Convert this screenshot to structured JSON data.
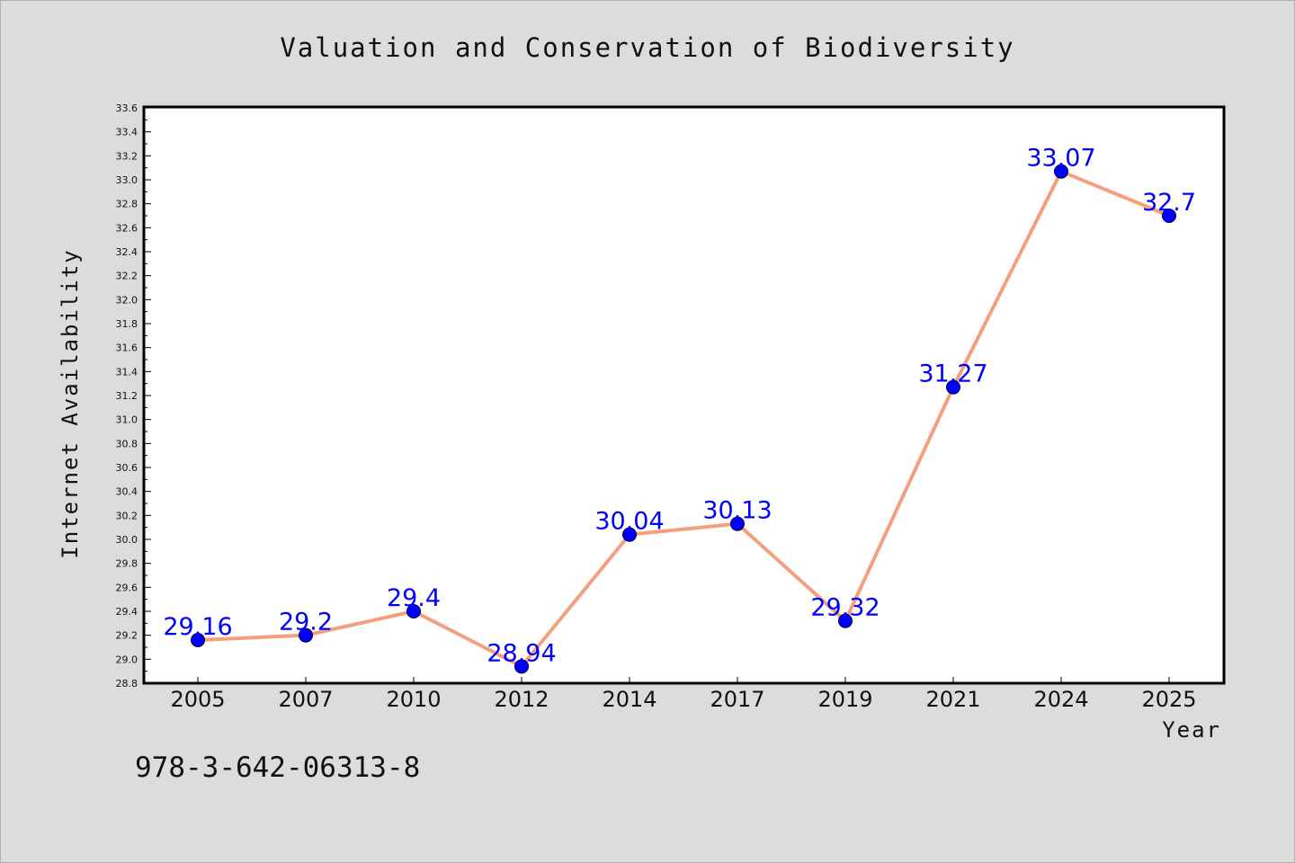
{
  "chart_data": {
    "type": "line",
    "title": "Valuation and Conservation of Biodiversity",
    "xlabel": "Year",
    "ylabel": "Internet Availability",
    "categories": [
      "2005",
      "2007",
      "2010",
      "2012",
      "2014",
      "2017",
      "2019",
      "2021",
      "2024",
      "2025"
    ],
    "values": [
      29.16,
      29.2,
      29.4,
      28.94,
      30.04,
      30.13,
      29.32,
      31.27,
      33.07,
      32.7
    ],
    "data_labels": [
      "29.16",
      "29.2",
      "29.4",
      "28.94",
      "30.04",
      "30.13",
      "29.32",
      "31.27",
      "33.07",
      "32.7"
    ],
    "ylim": [
      28.8,
      33.6
    ],
    "yticks": [
      "28.8",
      "29.0",
      "29.2",
      "29.4",
      "29.6",
      "29.8",
      "30.0",
      "30.2",
      "30.4",
      "30.6",
      "30.8",
      "31.0",
      "31.2",
      "31.4",
      "31.6",
      "31.8",
      "32.0",
      "32.2",
      "32.4",
      "32.6",
      "32.8",
      "33.0",
      "33.2",
      "33.4",
      "33.6"
    ],
    "grid": false,
    "line_color": "#f4a07e",
    "marker_color": "#0000ff",
    "label_color": "#0000ff",
    "plot_background": "#ffffff",
    "figure_background": "#dcdcdc"
  },
  "footer": {
    "isbn": "978-3-642-06313-8"
  }
}
